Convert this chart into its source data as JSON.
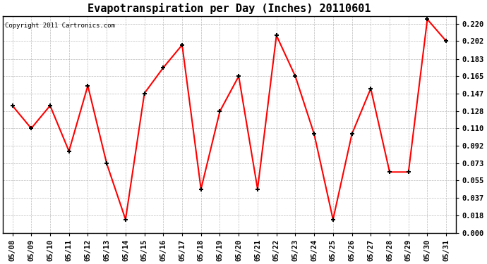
{
  "title": "Evapotranspiration per Day (Inches) 20110601",
  "copyright_text": "Copyright 2011 Cartronics.com",
  "x_labels": [
    "05/08",
    "05/09",
    "05/10",
    "05/11",
    "05/12",
    "05/13",
    "05/14",
    "05/15",
    "05/16",
    "05/17",
    "05/18",
    "05/19",
    "05/20",
    "05/21",
    "05/22",
    "05/23",
    "05/24",
    "05/25",
    "05/26",
    "05/27",
    "05/28",
    "05/29",
    "05/30",
    "05/31"
  ],
  "y_values": [
    0.134,
    0.11,
    0.134,
    0.086,
    0.155,
    0.073,
    0.014,
    0.147,
    0.174,
    0.198,
    0.046,
    0.128,
    0.165,
    0.046,
    0.208,
    0.165,
    0.104,
    0.014,
    0.104,
    0.152,
    0.064,
    0.064,
    0.225,
    0.202
  ],
  "line_color": "#ff0000",
  "marker": "+",
  "marker_size": 5,
  "marker_edge_width": 1.5,
  "line_width": 1.5,
  "background_color": "#ffffff",
  "grid_color": "#bbbbbb",
  "ylim": [
    0.0,
    0.2285
  ],
  "yticks": [
    0.0,
    0.018,
    0.037,
    0.055,
    0.073,
    0.092,
    0.11,
    0.128,
    0.147,
    0.165,
    0.183,
    0.202,
    0.22
  ],
  "title_fontsize": 11,
  "tick_fontsize": 7.5,
  "copyright_fontsize": 6.5
}
